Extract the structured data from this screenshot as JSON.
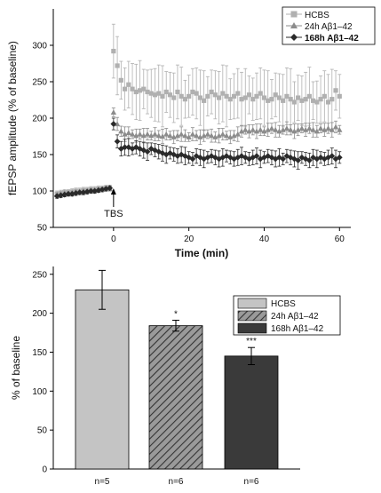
{
  "chart_data": [
    {
      "type": "scatter",
      "xlabel": "Time (min)",
      "ylabel": "fEPSP amplitude (% of baseline)",
      "xlim": [
        -16,
        63
      ],
      "ylim": [
        50,
        350
      ],
      "xticks": [
        0,
        20,
        40,
        60
      ],
      "yticks": [
        50,
        100,
        150,
        200,
        250,
        300
      ],
      "grid": false,
      "legend_position": "top-right",
      "annotation": "TBS",
      "annotation_x": 0,
      "series": [
        {
          "name": "HCBS",
          "color": "#b0b0b0",
          "marker": "square",
          "baseline": [
            [
              -15,
              96
            ],
            [
              -14,
              97
            ],
            [
              -13,
              98
            ],
            [
              -12,
              98
            ],
            [
              -11,
              99
            ],
            [
              -10,
              100
            ],
            [
              -9,
              100
            ],
            [
              -8,
              101
            ],
            [
              -7,
              101
            ],
            [
              -6,
              102
            ],
            [
              -5,
              102
            ],
            [
              -4,
              103
            ],
            [
              -3,
              103
            ],
            [
              -2,
              104
            ],
            [
              -1,
              104
            ]
          ],
          "post": [
            [
              0,
              292
            ],
            [
              1,
              272
            ],
            [
              2,
              252
            ],
            [
              3,
              240
            ],
            [
              4,
              246
            ],
            [
              5,
              240
            ],
            [
              6,
              236
            ],
            [
              7,
              238
            ],
            [
              8,
              240
            ],
            [
              9,
              236
            ],
            [
              10,
              234
            ],
            [
              11,
              232
            ],
            [
              12,
              234
            ],
            [
              13,
              230
            ],
            [
              14,
              236
            ],
            [
              15,
              232
            ],
            [
              16,
              228
            ],
            [
              17,
              236
            ],
            [
              18,
              230
            ],
            [
              19,
              226
            ],
            [
              20,
              230
            ],
            [
              21,
              236
            ],
            [
              22,
              234
            ],
            [
              23,
              228
            ],
            [
              24,
              224
            ],
            [
              25,
              230
            ],
            [
              26,
              236
            ],
            [
              27,
              232
            ],
            [
              28,
              228
            ],
            [
              29,
              234
            ],
            [
              30,
              230
            ],
            [
              31,
              226
            ],
            [
              32,
              230
            ],
            [
              33,
              234
            ],
            [
              34,
              226
            ],
            [
              35,
              228
            ],
            [
              36,
              232
            ],
            [
              37,
              226
            ],
            [
              38,
              230
            ],
            [
              39,
              234
            ],
            [
              40,
              228
            ],
            [
              41,
              224
            ],
            [
              42,
              226
            ],
            [
              43,
              232
            ],
            [
              44,
              228
            ],
            [
              45,
              224
            ],
            [
              46,
              230
            ],
            [
              47,
              226
            ],
            [
              48,
              222
            ],
            [
              49,
              228
            ],
            [
              50,
              224
            ],
            [
              51,
              226
            ],
            [
              52,
              230
            ],
            [
              53,
              224
            ],
            [
              54,
              222
            ],
            [
              55,
              226
            ],
            [
              56,
              230
            ],
            [
              57,
              222
            ],
            [
              58,
              226
            ],
            [
              59,
              238
            ],
            [
              60,
              230
            ]
          ],
          "error_bars": "±25 to ±45 (wide, light grey)"
        },
        {
          "name": "24h Aβ1–42",
          "color": "#8c8c8c",
          "marker": "triangle",
          "baseline": [
            [
              -15,
              95
            ],
            [
              -14,
              96
            ],
            [
              -13,
              97
            ],
            [
              -12,
              97
            ],
            [
              -11,
              98
            ],
            [
              -10,
              99
            ],
            [
              -9,
              99
            ],
            [
              -8,
              100
            ],
            [
              -7,
              100
            ],
            [
              -6,
              101
            ],
            [
              -5,
              101
            ],
            [
              -4,
              102
            ],
            [
              -3,
              102
            ],
            [
              -2,
              103
            ],
            [
              -1,
              103
            ]
          ],
          "post": [
            [
              0,
              208
            ],
            [
              1,
              192
            ],
            [
              2,
              182
            ],
            [
              3,
              178
            ],
            [
              4,
              180
            ],
            [
              5,
              178
            ],
            [
              6,
              176
            ],
            [
              7,
              178
            ],
            [
              8,
              176
            ],
            [
              9,
              178
            ],
            [
              10,
              176
            ],
            [
              11,
              178
            ],
            [
              12,
              176
            ],
            [
              13,
              175
            ],
            [
              14,
              178
            ],
            [
              15,
              176
            ],
            [
              16,
              174
            ],
            [
              17,
              176
            ],
            [
              18,
              178
            ],
            [
              19,
              176
            ],
            [
              20,
              174
            ],
            [
              21,
              178
            ],
            [
              22,
              176
            ],
            [
              23,
              174
            ],
            [
              24,
              176
            ],
            [
              25,
              178
            ],
            [
              26,
              176
            ],
            [
              27,
              174
            ],
            [
              28,
              176
            ],
            [
              29,
              178
            ],
            [
              30,
              176
            ],
            [
              31,
              174
            ],
            [
              32,
              176
            ],
            [
              33,
              178
            ],
            [
              34,
              182
            ],
            [
              35,
              184
            ],
            [
              36,
              182
            ],
            [
              37,
              184
            ],
            [
              38,
              182
            ],
            [
              39,
              184
            ],
            [
              40,
              182
            ],
            [
              41,
              184
            ],
            [
              42,
              186
            ],
            [
              43,
              184
            ],
            [
              44,
              182
            ],
            [
              45,
              184
            ],
            [
              46,
              186
            ],
            [
              47,
              184
            ],
            [
              48,
              182
            ],
            [
              49,
              184
            ],
            [
              50,
              186
            ],
            [
              51,
              184
            ],
            [
              52,
              186
            ],
            [
              53,
              184
            ],
            [
              54,
              182
            ],
            [
              55,
              186
            ],
            [
              56,
              184
            ],
            [
              57,
              186
            ],
            [
              58,
              184
            ],
            [
              59,
              188
            ],
            [
              60,
              184
            ]
          ],
          "error_bars": "±5 to ±10"
        },
        {
          "name": "168h Aβ1–42",
          "color": "#2a2a2a",
          "marker": "diamond",
          "baseline": [
            [
              -15,
              93
            ],
            [
              -14,
              94
            ],
            [
              -13,
              95
            ],
            [
              -12,
              96
            ],
            [
              -11,
              96
            ],
            [
              -10,
              97
            ],
            [
              -9,
              98
            ],
            [
              -8,
              98
            ],
            [
              -7,
              99
            ],
            [
              -6,
              100
            ],
            [
              -5,
              100
            ],
            [
              -4,
              101
            ],
            [
              -3,
              102
            ],
            [
              -2,
              103
            ],
            [
              -1,
              104
            ]
          ],
          "post": [
            [
              0,
              192
            ],
            [
              1,
              168
            ],
            [
              2,
              158
            ],
            [
              3,
              160
            ],
            [
              4,
              160
            ],
            [
              5,
              158
            ],
            [
              6,
              160
            ],
            [
              7,
              158
            ],
            [
              8,
              156
            ],
            [
              9,
              154
            ],
            [
              10,
              158
            ],
            [
              11,
              156
            ],
            [
              12,
              154
            ],
            [
              13,
              152
            ],
            [
              14,
              150
            ],
            [
              15,
              152
            ],
            [
              16,
              150
            ],
            [
              17,
              148
            ],
            [
              18,
              150
            ],
            [
              19,
              148
            ],
            [
              20,
              146
            ],
            [
              21,
              144
            ],
            [
              22,
              148
            ],
            [
              23,
              146
            ],
            [
              24,
              144
            ],
            [
              25,
              146
            ],
            [
              26,
              148
            ],
            [
              27,
              146
            ],
            [
              28,
              144
            ],
            [
              29,
              146
            ],
            [
              30,
              148
            ],
            [
              31,
              146
            ],
            [
              32,
              144
            ],
            [
              33,
              146
            ],
            [
              34,
              148
            ],
            [
              35,
              146
            ],
            [
              36,
              144
            ],
            [
              37,
              146
            ],
            [
              38,
              148
            ],
            [
              39,
              144
            ],
            [
              40,
              146
            ],
            [
              41,
              148
            ],
            [
              42,
              146
            ],
            [
              43,
              144
            ],
            [
              44,
              146
            ],
            [
              45,
              144
            ],
            [
              46,
              148
            ],
            [
              47,
              146
            ],
            [
              48,
              144
            ],
            [
              49,
              142
            ],
            [
              50,
              146
            ],
            [
              51,
              144
            ],
            [
              52,
              142
            ],
            [
              53,
              146
            ],
            [
              54,
              144
            ],
            [
              55,
              146
            ],
            [
              56,
              144
            ],
            [
              57,
              146
            ],
            [
              58,
              148
            ],
            [
              59,
              144
            ],
            [
              60,
              146
            ]
          ],
          "error_bars": "±6 to ±12"
        }
      ]
    },
    {
      "type": "bar",
      "ylabel": "% of baseline",
      "ylim": [
        0,
        260
      ],
      "yticks": [
        0,
        50,
        100,
        150,
        200,
        250
      ],
      "grid": false,
      "legend_position": "top-right",
      "categories": [
        "n=5",
        "n=6",
        "n=6"
      ],
      "series": [
        {
          "name": "HCBS",
          "value": 230,
          "error": 25,
          "color": "#c4c4c4",
          "pattern": "solid",
          "significance": ""
        },
        {
          "name": "24h Aβ1–42",
          "value": 184,
          "error": 7,
          "color": "#7a7a7a",
          "pattern": "hatched",
          "significance": "*"
        },
        {
          "name": "168h Aβ1–42",
          "value": 145,
          "error": 11,
          "color": "#3a3a3a",
          "pattern": "solid",
          "significance": "***"
        }
      ]
    }
  ]
}
